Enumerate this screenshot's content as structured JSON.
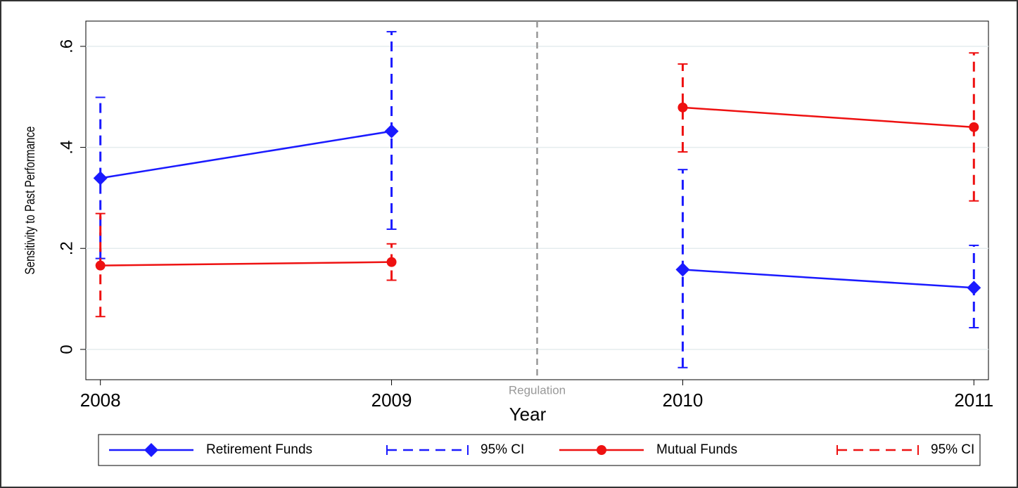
{
  "chart_data": {
    "type": "line",
    "x_label": "Year",
    "y_label": "Sensitivity to Past Performance",
    "x": [
      2008,
      2009,
      2010,
      2011
    ],
    "xlim": [
      2007.95,
      2011.05
    ],
    "xticks": [
      2008,
      2009,
      2010,
      2011
    ],
    "ylim": [
      -0.06,
      0.65
    ],
    "yticks": [
      {
        "value": 0,
        "label": "0"
      },
      {
        "value": 0.2,
        "label": ".2"
      },
      {
        "value": 0.4,
        "label": ".4"
      },
      {
        "value": 0.6,
        "label": ".6"
      }
    ],
    "grid": true,
    "vline": {
      "x": 2009.5,
      "label": "Regulation",
      "color": "#999999"
    },
    "series": [
      {
        "name": "Retirement Funds",
        "color": "#1a1aff",
        "marker": "diamond",
        "values": [
          0.339,
          0.432,
          0.158,
          0.122
        ],
        "ci_name": "95% CI",
        "ci_low": [
          0.18,
          0.238,
          -0.036,
          0.043
        ],
        "ci_high": [
          0.499,
          0.629,
          0.356,
          0.206
        ]
      },
      {
        "name": "Mutual Funds",
        "color": "#ee1111",
        "marker": "circle",
        "values": [
          0.166,
          0.173,
          0.479,
          0.44
        ],
        "ci_name": "95% CI",
        "ci_low": [
          0.065,
          0.137,
          0.391,
          0.294
        ],
        "ci_high": [
          0.269,
          0.209,
          0.565,
          0.587
        ]
      }
    ]
  }
}
